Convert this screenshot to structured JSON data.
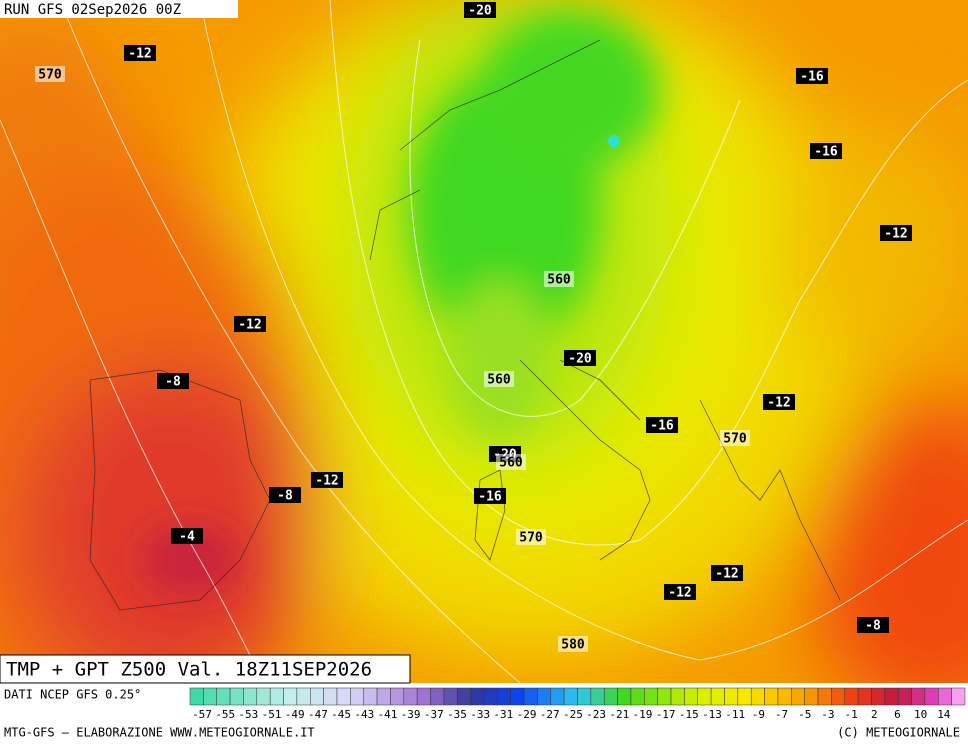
{
  "header": {
    "run": "RUN GFS 02Sep2026 00Z",
    "title": "TMP + GPT Z500 Val. 18Z11SEP2026"
  },
  "temp_labels": [
    "-20",
    "-12",
    "-16",
    "-16",
    "-12",
    "-12",
    "-20",
    "-8",
    "-12",
    "-16",
    "-20",
    "-12",
    "-16",
    "-8",
    "-4",
    "-12",
    "-12",
    "-8"
  ],
  "gpt_labels": [
    "570",
    "560",
    "560",
    "570",
    "560",
    "570",
    "580"
  ],
  "legend": {
    "source": "DATI NCEP GFS 0.25°",
    "labels": [
      "-57",
      "-55",
      "-53",
      "-51",
      "-49",
      "-47",
      "-45",
      "-43",
      "-41",
      "-39",
      "-37",
      "-35",
      "-33",
      "-31",
      "-29",
      "-27",
      "-25",
      "-23",
      "-21",
      "-19",
      "-17",
      "-15",
      "-13",
      "-11",
      "-9",
      "-7",
      "-5",
      "-3",
      "-1",
      "2",
      "6",
      "10",
      "14"
    ]
  },
  "footer": {
    "left": "MTG-GFS — ELABORAZIONE WWW.METEOGIORNALE.IT",
    "right": "(C) METEOGIORNALE"
  }
}
